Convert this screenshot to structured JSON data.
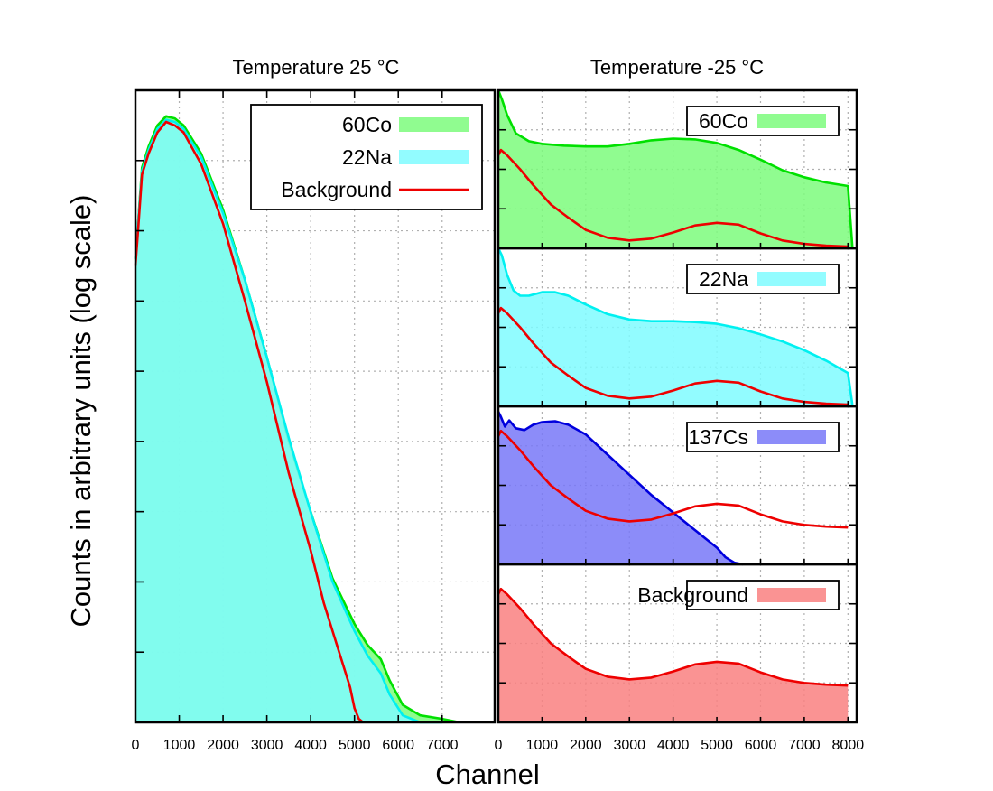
{
  "chart_data": [
    {
      "type": "area",
      "title": "Temperature 25 °C",
      "xlabel": "Channel",
      "ylabel": "Counts in arbitrary units (log scale)",
      "xlim": [
        0,
        8200
      ],
      "ylim": [
        0,
        9
      ],
      "y_scale": "log",
      "x_ticks": [
        "0",
        "1000",
        "2000",
        "3000",
        "4000",
        "5000",
        "6000",
        "7000"
      ],
      "grid": true,
      "legend": "top-right",
      "series": [
        {
          "name": "60Co",
          "color": "#00e000",
          "fill": "#7cfc7c",
          "x": [
            0,
            60,
            150,
            300,
            500,
            700,
            900,
            1100,
            1500,
            2000,
            2500,
            3000,
            3500,
            4000,
            4500,
            5000,
            5300,
            5600,
            5800,
            6100,
            6500,
            7000,
            7400
          ],
          "y": [
            6.6,
            7.1,
            7.9,
            8.2,
            8.5,
            8.63,
            8.6,
            8.5,
            8.1,
            7.3,
            6.3,
            5.2,
            4.0,
            3.0,
            2.05,
            1.4,
            1.1,
            0.9,
            0.6,
            0.25,
            0.1,
            0.05,
            0.0
          ]
        },
        {
          "name": "22Na",
          "color": "#00f0f0",
          "fill": "#7ffcff",
          "x": [
            0,
            60,
            150,
            300,
            500,
            700,
            900,
            1100,
            1500,
            2000,
            2500,
            3000,
            3500,
            4000,
            4500,
            5000,
            5300,
            5600,
            5800,
            6100,
            6500,
            7000
          ],
          "y": [
            6.6,
            7.1,
            7.85,
            8.15,
            8.45,
            8.58,
            8.55,
            8.45,
            8.05,
            7.25,
            6.3,
            5.2,
            4.05,
            3.0,
            2.0,
            1.3,
            0.95,
            0.7,
            0.4,
            0.1,
            0.0,
            0.0
          ]
        },
        {
          "name": "Background",
          "color": "#ee0000",
          "x": [
            0,
            60,
            150,
            300,
            500,
            700,
            900,
            1100,
            1500,
            2000,
            2500,
            3000,
            3500,
            4000,
            4300,
            4700,
            4900,
            5000,
            5100,
            5200
          ],
          "y": [
            6.5,
            7.0,
            7.8,
            8.1,
            8.4,
            8.55,
            8.5,
            8.4,
            7.95,
            7.1,
            6.0,
            4.85,
            3.55,
            2.45,
            1.7,
            0.9,
            0.5,
            0.2,
            0.05,
            0.0
          ]
        }
      ]
    },
    {
      "type": "area",
      "title": "Temperature -25 °C",
      "xlabel": "Channel",
      "xlim": [
        0,
        8200
      ],
      "ylim": [
        0,
        9
      ],
      "y_scale": "log",
      "x_ticks": [
        "0",
        "1000",
        "2000",
        "3000",
        "4000",
        "5000",
        "6000",
        "7000",
        "8000"
      ],
      "grid": true,
      "legend": "top-right",
      "panels": [
        {
          "legend_label": "60Co",
          "series": [
            {
              "name": "60Co",
              "color": "#00e000",
              "fill": "#7cfc7c",
              "x": [
                0,
                80,
                200,
                400,
                700,
                1000,
                1500,
                2000,
                2500,
                3000,
                3500,
                4000,
                4500,
                5000,
                5500,
                6000,
                6500,
                7000,
                7500,
                8000,
                8100
              ],
              "y": [
                9.0,
                8.5,
                7.6,
                6.55,
                6.1,
                5.95,
                5.85,
                5.8,
                5.8,
                5.95,
                6.15,
                6.25,
                6.2,
                6.0,
                5.6,
                5.05,
                4.45,
                4.05,
                3.75,
                3.55,
                0.1
              ]
            },
            {
              "name": "Background",
              "color": "#ee0000",
              "x": [
                0,
                60,
                200,
                500,
                800,
                1200,
                1600,
                2000,
                2500,
                3000,
                3500,
                4000,
                4500,
                5000,
                5500,
                6000,
                6500,
                7000,
                7500,
                8000
              ],
              "y": [
                5.3,
                5.6,
                5.3,
                4.5,
                3.6,
                2.5,
                1.75,
                1.05,
                0.6,
                0.45,
                0.55,
                0.9,
                1.3,
                1.45,
                1.35,
                0.85,
                0.45,
                0.25,
                0.15,
                0.1
              ]
            }
          ]
        },
        {
          "legend_label": "22Na",
          "series": [
            {
              "name": "22Na",
              "color": "#00f0f0",
              "fill": "#7ffcff",
              "x": [
                0,
                80,
                200,
                350,
                500,
                700,
                1000,
                1300,
                1600,
                2000,
                2500,
                3000,
                3500,
                4000,
                4500,
                5000,
                5500,
                6000,
                6500,
                7000,
                7500,
                8000,
                8100
              ],
              "y": [
                9.0,
                8.6,
                7.5,
                6.6,
                6.3,
                6.3,
                6.5,
                6.5,
                6.3,
                5.8,
                5.25,
                4.95,
                4.85,
                4.85,
                4.8,
                4.7,
                4.45,
                4.1,
                3.7,
                3.2,
                2.6,
                1.9,
                0.1
              ]
            },
            {
              "name": "Background",
              "color": "#ee0000",
              "x": [
                0,
                60,
                200,
                500,
                800,
                1200,
                1600,
                2000,
                2500,
                3000,
                3500,
                4000,
                4500,
                5000,
                5500,
                6000,
                6500,
                7000,
                7500,
                8000
              ],
              "y": [
                5.3,
                5.6,
                5.3,
                4.5,
                3.6,
                2.5,
                1.75,
                1.05,
                0.6,
                0.45,
                0.55,
                0.9,
                1.3,
                1.45,
                1.35,
                0.85,
                0.45,
                0.25,
                0.15,
                0.1
              ]
            }
          ]
        },
        {
          "legend_label": "137Cs",
          "series": [
            {
              "name": "137Cs",
              "color": "#0000dd",
              "fill": "#7878f8",
              "x": [
                0,
                60,
                150,
                250,
                400,
                600,
                800,
                1000,
                1300,
                1600,
                2000,
                2500,
                3000,
                3500,
                4000,
                4500,
                5000,
                5200,
                5400,
                5600
              ],
              "y": [
                8.7,
                8.4,
                7.85,
                8.2,
                7.75,
                7.65,
                7.95,
                8.1,
                8.15,
                7.95,
                7.4,
                6.25,
                5.1,
                3.95,
                2.95,
                1.95,
                0.95,
                0.4,
                0.1,
                0.0
              ]
            },
            {
              "name": "Background",
              "color": "#ee0000",
              "x": [
                0,
                60,
                200,
                500,
                800,
                1200,
                1600,
                2000,
                2500,
                3000,
                3500,
                4000,
                4500,
                5000,
                5500,
                6000,
                6500,
                7000,
                7500,
                8000
              ],
              "y": [
                7.3,
                7.6,
                7.3,
                6.5,
                5.6,
                4.5,
                3.75,
                3.05,
                2.6,
                2.45,
                2.55,
                2.9,
                3.3,
                3.45,
                3.35,
                2.85,
                2.45,
                2.25,
                2.15,
                2.1
              ]
            }
          ]
        },
        {
          "legend_label": "Background",
          "series": [
            {
              "name": "Background",
              "color": "#ee0000",
              "fill": "#f98080",
              "x": [
                0,
                60,
                200,
                500,
                800,
                1200,
                1600,
                2000,
                2500,
                3000,
                3500,
                4000,
                4500,
                5000,
                5500,
                6000,
                6500,
                7000,
                7500,
                8000
              ],
              "y": [
                7.3,
                7.6,
                7.3,
                6.5,
                5.6,
                4.5,
                3.75,
                3.05,
                2.6,
                2.45,
                2.55,
                2.9,
                3.3,
                3.45,
                3.35,
                2.85,
                2.45,
                2.25,
                2.15,
                2.1
              ]
            }
          ]
        }
      ]
    }
  ]
}
